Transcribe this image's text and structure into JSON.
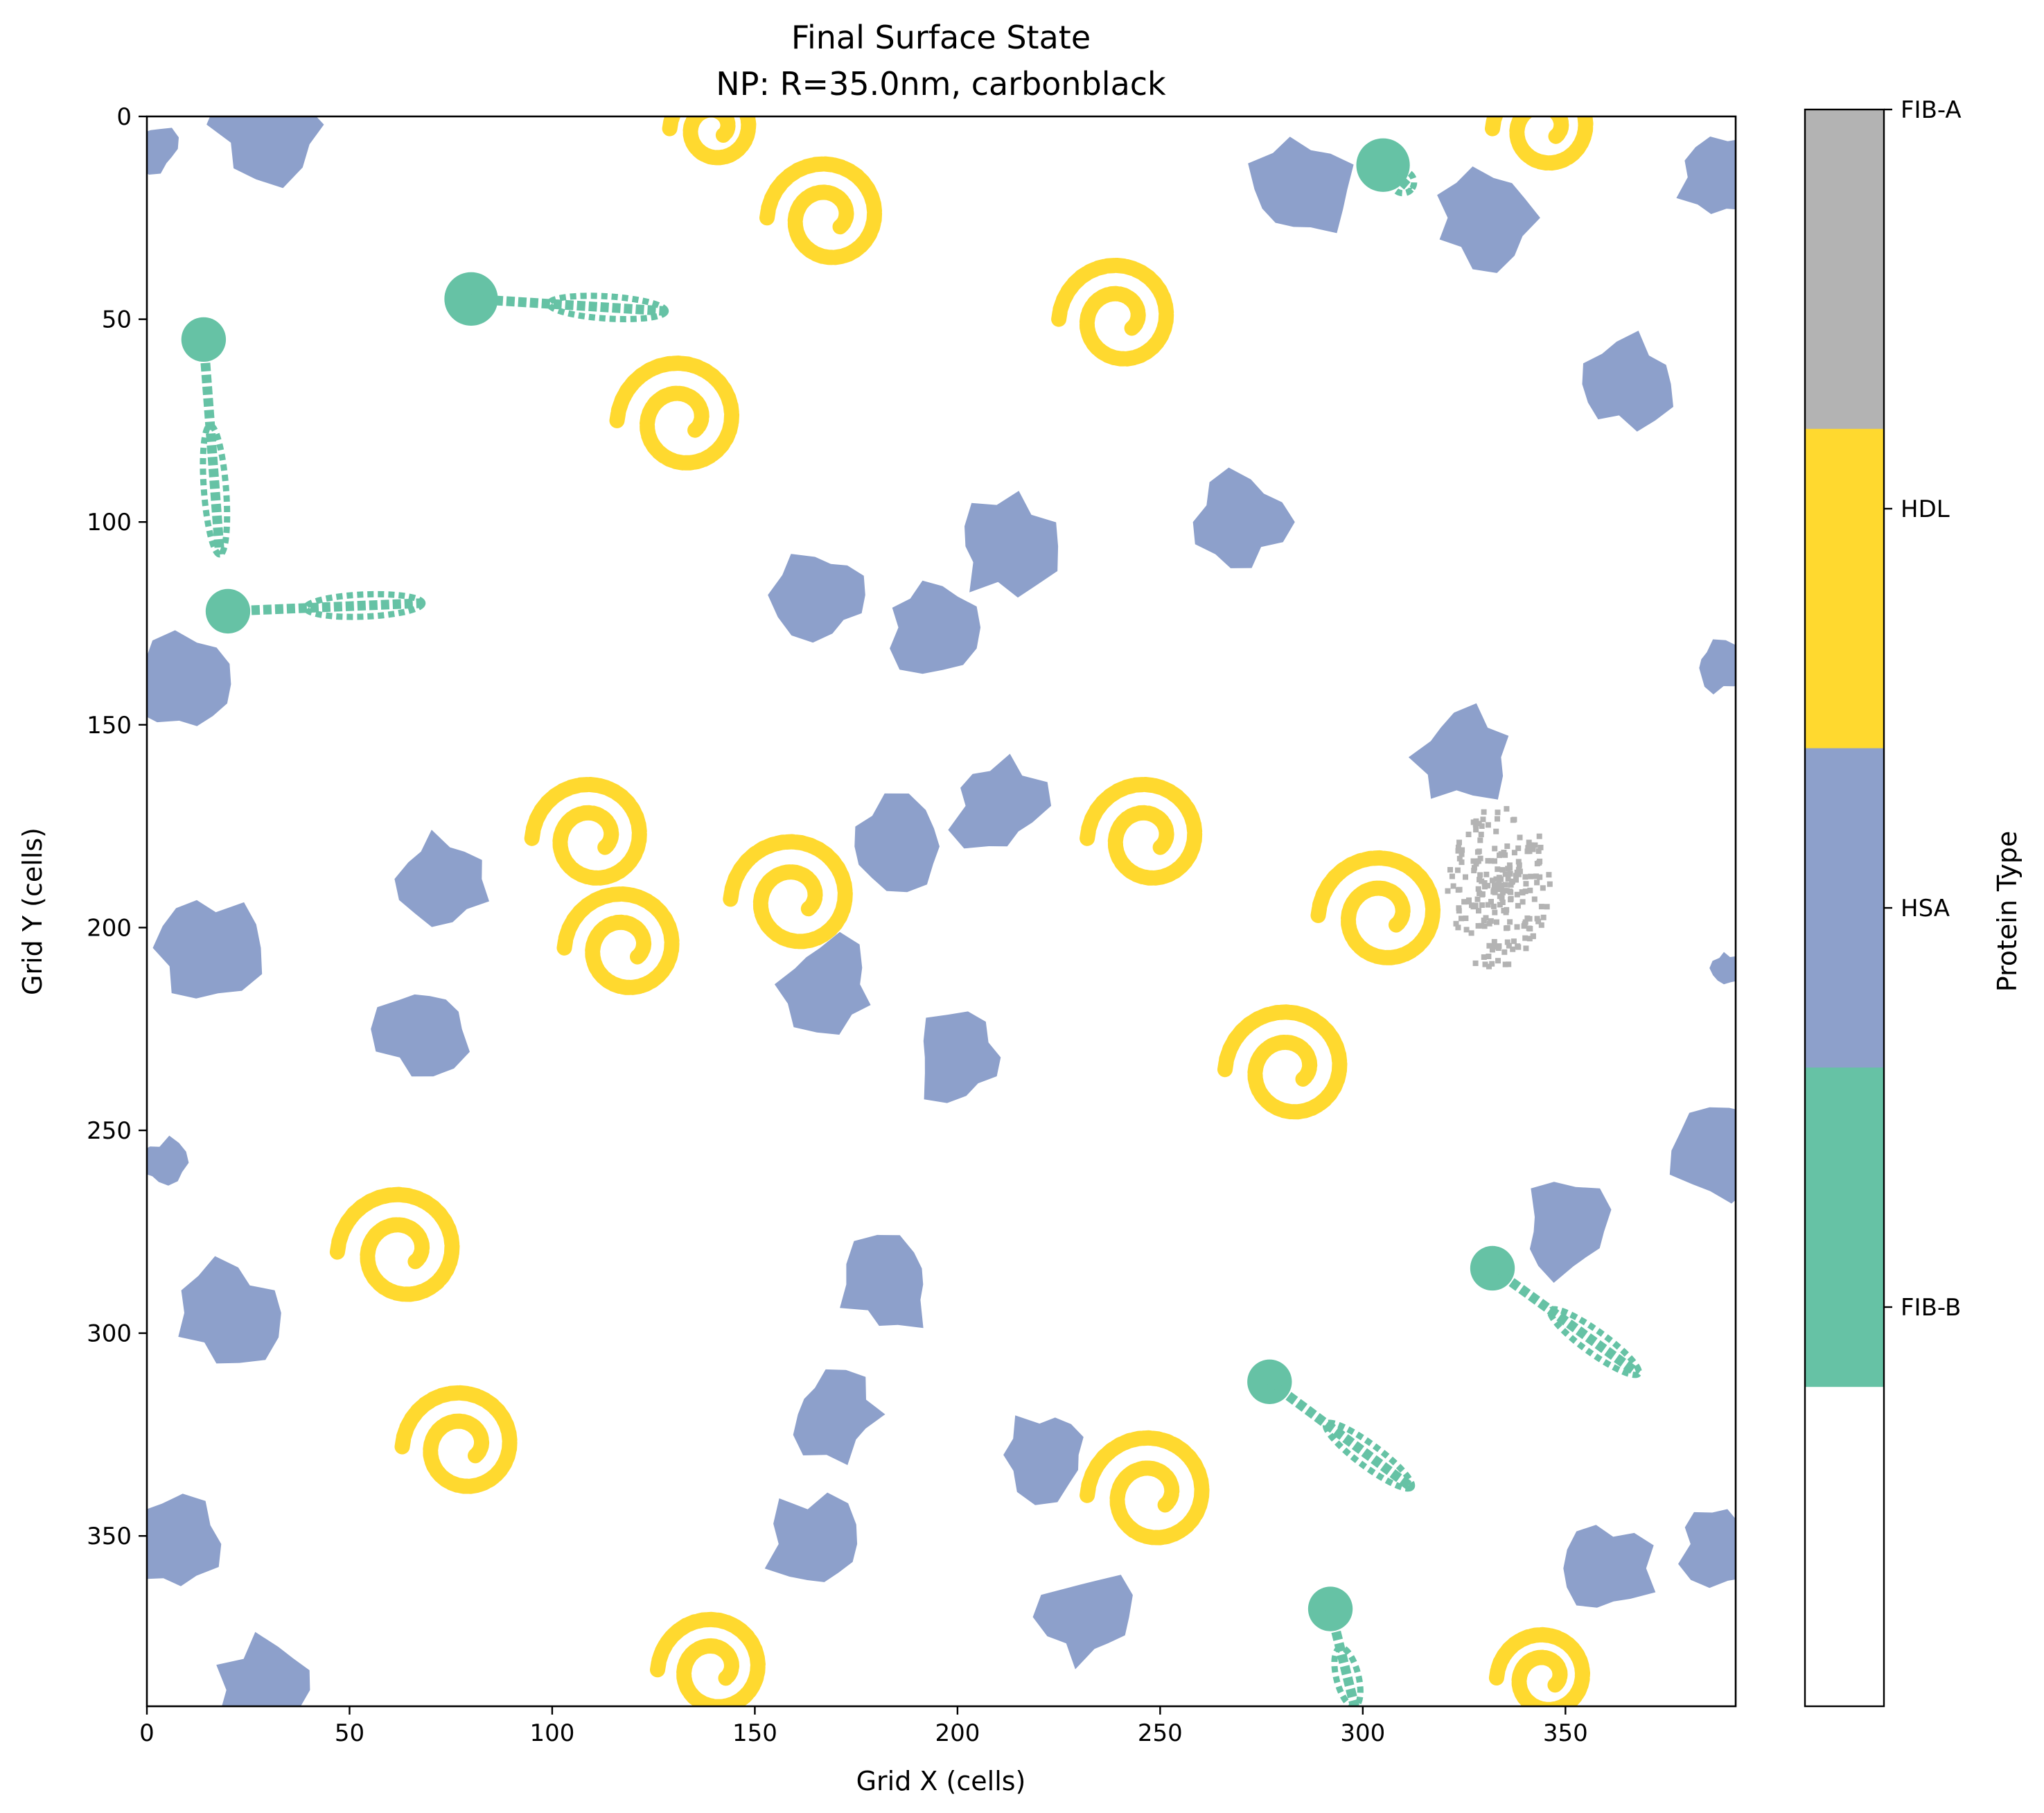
{
  "chart_data": {
    "type": "heatmap",
    "title": "Final Surface State",
    "subtitle": "NP: R=35.0nm, carbonblack",
    "xlabel": "Grid X (cells)",
    "ylabel": "Grid Y (cells)",
    "xlim": [
      0,
      392
    ],
    "ylim": [
      392,
      0
    ],
    "xticks": [
      0,
      50,
      100,
      150,
      200,
      250,
      300,
      350
    ],
    "yticks": [
      0,
      50,
      100,
      150,
      200,
      250,
      300,
      350
    ],
    "colorbar": {
      "label": "Protein Type",
      "categories": [
        {
          "name": "FIB-A",
          "color": "#b3b3b3"
        },
        {
          "name": "HDL",
          "color": "#ffd92f"
        },
        {
          "name": "HSA",
          "color": "#8da0cb"
        },
        {
          "name": "FIB-B",
          "color": "#66c2a5"
        },
        {
          "name": "",
          "color": "#ffffff"
        }
      ]
    },
    "proteins": [
      {
        "type": "HSA",
        "center": [
          30,
          2
        ],
        "size": 14
      },
      {
        "type": "HSA",
        "center": [
          2,
          8
        ],
        "size": 6
      },
      {
        "type": "HSA",
        "center": [
          285,
          18
        ],
        "size": 13
      },
      {
        "type": "HSA",
        "center": [
          330,
          25
        ],
        "size": 13
      },
      {
        "type": "HSA",
        "center": [
          388,
          15
        ],
        "size": 12
      },
      {
        "type": "HSA",
        "center": [
          365,
          66
        ],
        "size": 12
      },
      {
        "type": "HSA",
        "center": [
          270,
          100
        ],
        "size": 12
      },
      {
        "type": "HSA",
        "center": [
          212,
          106
        ],
        "size": 13
      },
      {
        "type": "HSA",
        "center": [
          167,
          118
        ],
        "size": 12
      },
      {
        "type": "HSA",
        "center": [
          194,
          126
        ],
        "size": 12
      },
      {
        "type": "HSA",
        "center": [
          10,
          140
        ],
        "size": 13
      },
      {
        "type": "HSA",
        "center": [
          388,
          136
        ],
        "size": 7
      },
      {
        "type": "HSA",
        "center": [
          325,
          158
        ],
        "size": 12
      },
      {
        "type": "HSA",
        "center": [
          73,
          188
        ],
        "size": 12
      },
      {
        "type": "HSA",
        "center": [
          185,
          180
        ],
        "size": 12
      },
      {
        "type": "HSA",
        "center": [
          210,
          170
        ],
        "size": 12
      },
      {
        "type": "HSA",
        "center": [
          15,
          205
        ],
        "size": 13
      },
      {
        "type": "HSA",
        "center": [
          168,
          214
        ],
        "size": 12
      },
      {
        "type": "HSA",
        "center": [
          68,
          225
        ],
        "size": 12
      },
      {
        "type": "HSA",
        "center": [
          200,
          232
        ],
        "size": 12
      },
      {
        "type": "HSA",
        "center": [
          4,
          258
        ],
        "size": 6
      },
      {
        "type": "HSA",
        "center": [
          388,
          255
        ],
        "size": 12
      },
      {
        "type": "HSA",
        "center": [
          350,
          275
        ],
        "size": 12
      },
      {
        "type": "HSA",
        "center": [
          20,
          295
        ],
        "size": 13
      },
      {
        "type": "HSA",
        "center": [
          183,
          288
        ],
        "size": 12
      },
      {
        "type": "HSA",
        "center": [
          170,
          320
        ],
        "size": 12
      },
      {
        "type": "HSA",
        "center": [
          165,
          352
        ],
        "size": 13
      },
      {
        "type": "HSA",
        "center": [
          222,
          330
        ],
        "size": 12
      },
      {
        "type": "HSA",
        "center": [
          232,
          370
        ],
        "size": 12
      },
      {
        "type": "HSA",
        "center": [
          360,
          358
        ],
        "size": 12
      },
      {
        "type": "HSA",
        "center": [
          6,
          352
        ],
        "size": 12
      },
      {
        "type": "HSA",
        "center": [
          388,
          352
        ],
        "size": 10
      },
      {
        "type": "HSA",
        "center": [
          30,
          388
        ],
        "size": 13
      },
      {
        "type": "HSA",
        "center": [
          390,
          210
        ],
        "size": 4
      },
      {
        "type": "HDL",
        "center": [
          140,
          3
        ],
        "size": 11
      },
      {
        "type": "HDL",
        "center": [
          168,
          25
        ],
        "size": 15
      },
      {
        "type": "HDL",
        "center": [
          345,
          3
        ],
        "size": 13
      },
      {
        "type": "HDL",
        "center": [
          240,
          50
        ],
        "size": 15
      },
      {
        "type": "HDL",
        "center": [
          132,
          75
        ],
        "size": 16
      },
      {
        "type": "HDL",
        "center": [
          110,
          178
        ],
        "size": 15
      },
      {
        "type": "HDL",
        "center": [
          118,
          205
        ],
        "size": 15
      },
      {
        "type": "HDL",
        "center": [
          160,
          193
        ],
        "size": 16
      },
      {
        "type": "HDL",
        "center": [
          247,
          178
        ],
        "size": 15
      },
      {
        "type": "HDL",
        "center": [
          305,
          197
        ],
        "size": 16
      },
      {
        "type": "HDL",
        "center": [
          282,
          235
        ],
        "size": 16
      },
      {
        "type": "HDL",
        "center": [
          63,
          280
        ],
        "size": 16
      },
      {
        "type": "HDL",
        "center": [
          78,
          328
        ],
        "size": 15
      },
      {
        "type": "HDL",
        "center": [
          248,
          340
        ],
        "size": 16
      },
      {
        "type": "HDL",
        "center": [
          140,
          383
        ],
        "size": 14
      },
      {
        "type": "HDL",
        "center": [
          345,
          385
        ],
        "size": 12
      },
      {
        "type": "FIB-A",
        "center": [
          333,
          190
        ],
        "size": 16
      },
      {
        "type": "FIB-B",
        "center": [
          305,
          12
        ],
        "size": 12,
        "shape": "fiber",
        "end": [
          312,
          18
        ]
      },
      {
        "type": "FIB-B",
        "center": [
          80,
          45
        ],
        "size": 12,
        "shape": "fiber",
        "end": [
          128,
          48
        ]
      },
      {
        "type": "FIB-B",
        "center": [
          14,
          55
        ],
        "size": 10,
        "shape": "fiber",
        "end": [
          18,
          108
        ]
      },
      {
        "type": "FIB-B",
        "center": [
          20,
          122
        ],
        "size": 10,
        "shape": "fiber",
        "end": [
          68,
          120
        ]
      },
      {
        "type": "FIB-B",
        "center": [
          332,
          284
        ],
        "size": 10,
        "shape": "fiber",
        "end": [
          368,
          310
        ]
      },
      {
        "type": "FIB-B",
        "center": [
          277,
          312
        ],
        "size": 10,
        "shape": "fiber",
        "end": [
          312,
          338
        ]
      },
      {
        "type": "FIB-B",
        "center": [
          292,
          368
        ],
        "size": 10,
        "shape": "fiber",
        "end": [
          298,
          392
        ]
      }
    ]
  }
}
